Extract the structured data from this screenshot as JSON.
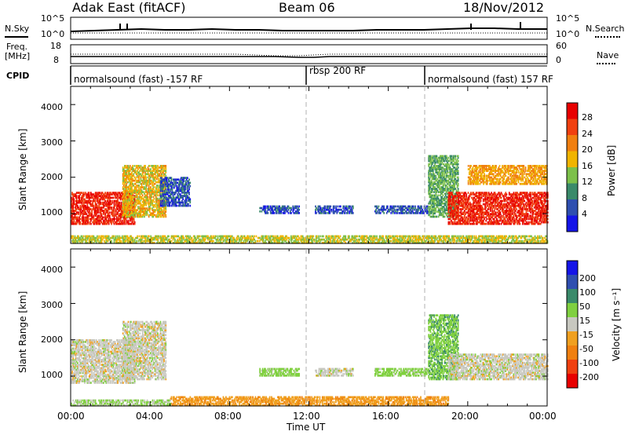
{
  "header": {
    "station": "Adak East (fitACF)",
    "beam": "Beam 06",
    "date": "18/Nov/2012"
  },
  "top_panels": {
    "nsky_label": "N.Sky",
    "nsky_ticks": [
      "10^5",
      "10^0"
    ],
    "nsearch_label": "N.Search",
    "nsearch_ticks": [
      "10^5",
      "10^0"
    ],
    "freq_label": "Freq.",
    "freq_unit": "[MHz]",
    "freq_ticks": [
      "18",
      "8"
    ],
    "nave_label": "Nave",
    "nave_ticks": [
      "60",
      "0"
    ],
    "cpid_label": "CPID",
    "cpid_segments": [
      {
        "label": "normalsound (fast) -157 RF",
        "start_h": 0,
        "end_h": 12
      },
      {
        "label": "rbsp 200 RF",
        "start_h": 12,
        "end_h": 18
      },
      {
        "label": "normalsound (fast) 157 RF",
        "start_h": 18,
        "end_h": 24
      }
    ]
  },
  "axes": {
    "ylabel": "Slant Range [km]",
    "xlabel": "Time UT",
    "y_ticks": [
      "1000",
      "2000",
      "3000",
      "4000"
    ],
    "x_ticks": [
      "00:00",
      "04:00",
      "08:00",
      "12:00",
      "16:00",
      "20:00",
      "00:00"
    ]
  },
  "colorbars": {
    "power": {
      "label": "Power [dB]",
      "ticks": [
        "4",
        "8",
        "12",
        "16",
        "20",
        "24",
        "28"
      ],
      "colors": [
        "#1515e8",
        "#2f4fb0",
        "#3a8a6a",
        "#7cc04a",
        "#f0b400",
        "#f07f10",
        "#f04010",
        "#e80000"
      ]
    },
    "velocity": {
      "label": "Velocity [m s⁻¹]",
      "ticks": [
        "-200",
        "-100",
        "-50",
        "-15",
        "15",
        "50",
        "100",
        "200"
      ],
      "colors": [
        "#e80000",
        "#f04010",
        "#f08010",
        "#f0a020",
        "#c8c8c0",
        "#80d040",
        "#3a8a6a",
        "#2f4fb0",
        "#1515e8"
      ]
    }
  },
  "chart_data": [
    {
      "type": "heatmap",
      "panel": "power",
      "x": "Time UT (hours)",
      "xlim": [
        0,
        24
      ],
      "ylim": [
        180,
        4500
      ],
      "y_unit": "km",
      "scatter_regions": [
        {
          "t0": 0.0,
          "t1": 3.2,
          "r0": 700,
          "r1": 1600,
          "power_db": 28
        },
        {
          "t0": 2.6,
          "t1": 4.8,
          "r0": 900,
          "r1": 2300,
          "power_db": 18
        },
        {
          "t0": 4.5,
          "t1": 6.0,
          "r0": 1200,
          "r1": 2000,
          "power_db": 6
        },
        {
          "t0": 9.5,
          "t1": 11.5,
          "r0": 1000,
          "r1": 1200,
          "power_db": 6
        },
        {
          "t0": 12.3,
          "t1": 14.2,
          "r0": 1000,
          "r1": 1200,
          "power_db": 6
        },
        {
          "t0": 15.3,
          "t1": 18.0,
          "r0": 1000,
          "r1": 1200,
          "power_db": 6
        },
        {
          "t0": 18.0,
          "t1": 19.5,
          "r0": 900,
          "r1": 2600,
          "power_db": 12
        },
        {
          "t0": 19.0,
          "t1": 24.0,
          "r0": 700,
          "r1": 1600,
          "power_db": 28
        },
        {
          "t0": 20.0,
          "t1": 24.0,
          "r0": 1800,
          "r1": 2300,
          "power_db": 20
        },
        {
          "t0": 0.0,
          "t1": 24.0,
          "r0": 180,
          "r1": 400,
          "power_db": 16
        }
      ]
    },
    {
      "type": "heatmap",
      "panel": "velocity",
      "x": "Time UT (hours)",
      "xlim": [
        0,
        24
      ],
      "ylim": [
        180,
        4500
      ],
      "y_unit": "km",
      "scatter_regions": [
        {
          "t0": 0.0,
          "t1": 3.2,
          "r0": 800,
          "r1": 2000,
          "velocity": 0
        },
        {
          "t0": 2.6,
          "t1": 4.8,
          "r0": 900,
          "r1": 2500,
          "velocity": 0
        },
        {
          "t0": 9.5,
          "t1": 11.5,
          "r0": 1000,
          "r1": 1200,
          "velocity": 30
        },
        {
          "t0": 12.3,
          "t1": 14.2,
          "r0": 1000,
          "r1": 1200,
          "velocity": 0
        },
        {
          "t0": 15.3,
          "t1": 18.0,
          "r0": 1000,
          "r1": 1200,
          "velocity": 30
        },
        {
          "t0": 18.0,
          "t1": 19.5,
          "r0": 900,
          "r1": 2700,
          "velocity": 40
        },
        {
          "t0": 19.0,
          "t1": 24.0,
          "r0": 900,
          "r1": 1600,
          "velocity": 0
        },
        {
          "t0": 5.0,
          "t1": 19.0,
          "r0": 180,
          "r1": 450,
          "velocity": -40
        },
        {
          "t0": 0.0,
          "t1": 5.0,
          "r0": 180,
          "r1": 350,
          "velocity": 20
        }
      ]
    }
  ]
}
